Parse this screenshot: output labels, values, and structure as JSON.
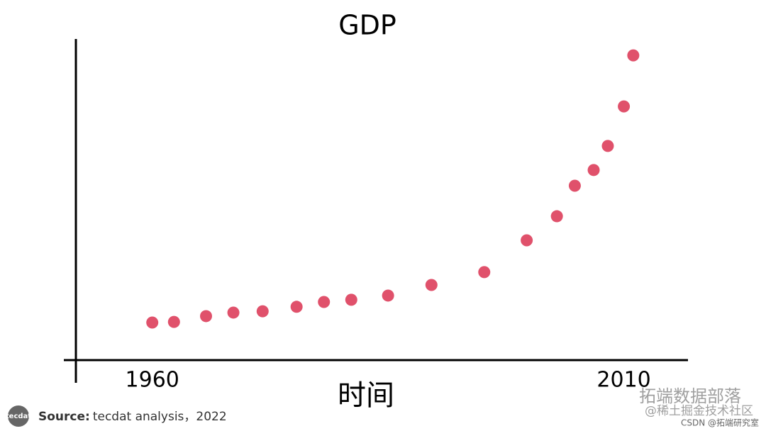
{
  "chart_data": {
    "type": "scatter",
    "title": "GDP",
    "x_label": "时间",
    "x": [
      1960,
      1962.3,
      1965.7,
      1968.6,
      1971.7,
      1975.3,
      1978.2,
      1981.1,
      1985,
      1989.6,
      1995.2,
      1999.7,
      2002.9,
      2004.8,
      2006.8,
      2008.3,
      2010,
      2011
    ],
    "values": [
      11.7,
      11.9,
      13.7,
      14.8,
      15.2,
      16.6,
      18.1,
      18.8,
      20.1,
      23.4,
      27.4,
      37.3,
      44.8,
      54.3,
      59.2,
      66.7,
      79.0,
      94.9
    ],
    "color": "#e0516b",
    "xlim": [
      1951.9,
      2016.8
    ],
    "xticks": [
      1960,
      2010
    ],
    "ylim": [
      0,
      100
    ],
    "grid": false
  },
  "footer": {
    "logo": "tecdat",
    "source_label": "Source:",
    "source_text": "tecdat analysis，2022"
  },
  "watermark": {
    "line1": "拓端数据部落",
    "line2": "@稀土掘金技术社区",
    "line3": "CSDN @拓端研究室"
  }
}
